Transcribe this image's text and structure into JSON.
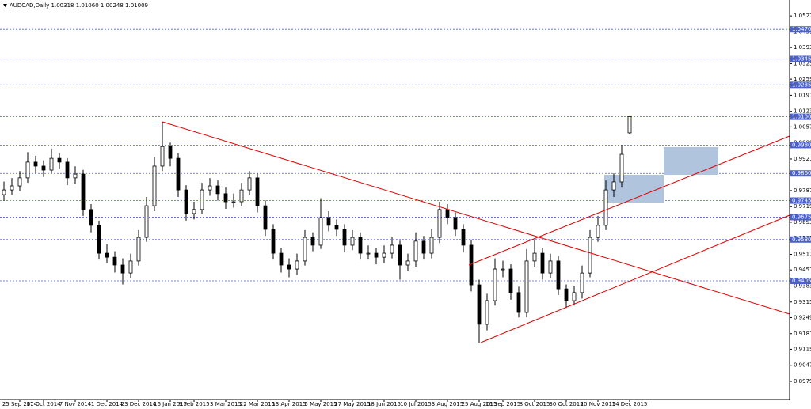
{
  "chart_data": {
    "type": "candlestick",
    "title": "AUDCAD,Daily  1.00318 1.01060 1.00248 1.01009",
    "categories": [
      null,
      null,
      "25 Sep 2014",
      null,
      null,
      "17 Oct 2014",
      null,
      null,
      null,
      "7 Nov 2014",
      null,
      null,
      null,
      "1 Dec 2014",
      null,
      null,
      null,
      "23 Dec 2014",
      null,
      null,
      null,
      "16 Jan 2015",
      null,
      null,
      "9 Feb 2015",
      null,
      null,
      null,
      "3 Mar 2015",
      null,
      null,
      null,
      "22 Mar 2015",
      null,
      null,
      null,
      "13 Apr 2015",
      null,
      null,
      null,
      "5 May 2015",
      null,
      null,
      null,
      "27 May 2015",
      null,
      null,
      null,
      "18 Jun 2015",
      null,
      null,
      null,
      "10 Jul 2015",
      null,
      null,
      null,
      "3 Aug 2015",
      null,
      null,
      null,
      "25 Aug 2015",
      null,
      null,
      "16 Sep 2015",
      null,
      null,
      null,
      "8 Oct 2015",
      null,
      null,
      null,
      "30 Oct 2015",
      null,
      null,
      null,
      "20 Nov 2015",
      null,
      null,
      null,
      "14 Dec 2015"
    ],
    "open": [
      0.977,
      0.979,
      0.9807,
      0.9841,
      0.9908,
      0.9891,
      0.9874,
      0.9924,
      0.9908,
      0.9841,
      0.9857,
      0.9707,
      0.964,
      0.9522,
      0.9505,
      0.9472,
      0.9438,
      0.9489,
      0.9589,
      0.9723,
      0.9891,
      0.9974,
      0.9924,
      0.979,
      0.969,
      0.9707,
      0.979,
      0.9807,
      0.9774,
      0.974,
      0.974,
      0.979,
      0.9841,
      0.9723,
      0.9623,
      0.9522,
      0.9472,
      0.9455,
      0.9489,
      0.9589,
      0.9556,
      0.9673,
      0.964,
      0.9623,
      0.9556,
      0.9589,
      0.9522,
      0.9522,
      0.9505,
      0.9522,
      0.9556,
      0.9472,
      0.9489,
      0.9573,
      0.9522,
      0.9589,
      0.9707,
      0.9673,
      0.9623,
      0.9556,
      0.9388,
      0.9221,
      0.9321,
      0.9455,
      0.9455,
      0.9355,
      0.9271,
      0.9489,
      0.9522,
      0.9438,
      0.9489,
      0.9371,
      0.9321,
      0.9355,
      0.9438,
      0.9589,
      0.964,
      0.979,
      0.9824,
      1.00318
    ],
    "high": [
      0.9825,
      0.984,
      0.987,
      0.995,
      0.9935,
      0.9915,
      0.9965,
      0.9945,
      0.9925,
      0.989,
      0.9875,
      0.973,
      0.966,
      0.956,
      0.953,
      0.95,
      0.952,
      0.962,
      0.976,
      0.993,
      1.0078,
      0.999,
      0.9945,
      0.981,
      0.974,
      0.982,
      0.984,
      0.983,
      0.98,
      0.9775,
      0.982,
      0.987,
      0.986,
      0.9745,
      0.9645,
      0.9545,
      0.95,
      0.952,
      0.962,
      0.961,
      0.9755,
      0.97,
      0.9665,
      0.9645,
      0.962,
      0.961,
      0.9555,
      0.9545,
      0.9555,
      0.959,
      0.9575,
      0.952,
      0.961,
      0.9595,
      0.9625,
      0.974,
      0.973,
      0.9695,
      0.9645,
      0.958,
      0.941,
      0.935,
      0.95,
      0.949,
      0.9475,
      0.938,
      0.954,
      0.958,
      0.9545,
      0.952,
      0.951,
      0.939,
      0.9385,
      0.947,
      0.962,
      0.968,
      0.983,
      0.986,
      0.998,
      1.0106
    ],
    "low": [
      0.9745,
      0.977,
      0.9785,
      0.982,
      0.986,
      0.9845,
      0.986,
      0.988,
      0.981,
      0.9815,
      0.968,
      0.961,
      0.9495,
      0.948,
      0.944,
      0.939,
      0.9415,
      0.947,
      0.957,
      0.97,
      0.987,
      0.989,
      0.976,
      0.966,
      0.9665,
      0.969,
      0.9765,
      0.9745,
      0.971,
      0.9715,
      0.972,
      0.977,
      0.9695,
      0.9595,
      0.9495,
      0.944,
      0.942,
      0.943,
      0.947,
      0.953,
      0.954,
      0.9615,
      0.9595,
      0.9525,
      0.9535,
      0.9495,
      0.9495,
      0.9475,
      0.948,
      0.95,
      0.941,
      0.9445,
      0.9465,
      0.9495,
      0.95,
      0.9565,
      0.9645,
      0.9595,
      0.9525,
      0.936,
      0.9143,
      0.9195,
      0.93,
      0.942,
      0.9325,
      0.925,
      0.925,
      0.9465,
      0.941,
      0.9415,
      0.9345,
      0.929,
      0.93,
      0.933,
      0.942,
      0.957,
      0.962,
      0.976,
      0.98,
      1.00248
    ],
    "close": [
      0.979,
      0.9807,
      0.9841,
      0.9908,
      0.9891,
      0.9874,
      0.9924,
      0.9908,
      0.9841,
      0.9857,
      0.9707,
      0.964,
      0.9522,
      0.9505,
      0.9472,
      0.9438,
      0.9489,
      0.9589,
      0.9723,
      0.9891,
      0.9974,
      0.9924,
      0.979,
      0.969,
      0.9707,
      0.979,
      0.9807,
      0.9774,
      0.974,
      0.974,
      0.979,
      0.9841,
      0.9723,
      0.9623,
      0.9522,
      0.9472,
      0.9455,
      0.9489,
      0.9589,
      0.9556,
      0.9673,
      0.964,
      0.9623,
      0.9556,
      0.9589,
      0.9522,
      0.9522,
      0.9505,
      0.9522,
      0.9556,
      0.9472,
      0.9489,
      0.9573,
      0.9522,
      0.9589,
      0.9707,
      0.9673,
      0.9623,
      0.9556,
      0.9388,
      0.9221,
      0.9321,
      0.9455,
      0.9455,
      0.9355,
      0.9271,
      0.9489,
      0.9522,
      0.9438,
      0.9489,
      0.9371,
      0.9321,
      0.9355,
      0.9438,
      0.9589,
      0.964,
      0.979,
      0.9824,
      0.9941,
      1.01009
    ],
    "ylim": [
      0.89022,
      1.0588
    ],
    "yticks": [
      1.05272,
      1.04592,
      1.03932,
      1.03252,
      1.02592,
      1.01912,
      1.01232,
      1.00572,
      0.99892,
      0.99212,
      0.98532,
      0.97872,
      0.97192,
      0.96532,
      0.95852,
      0.95172,
      0.94512,
      0.93832,
      0.93152,
      0.92492,
      0.91812,
      0.91152,
      0.90472,
      0.89792
    ],
    "levels": [
      {
        "value": 1.047,
        "label": "1.04700"
      },
      {
        "value": 1.0345,
        "label": "1.03450"
      },
      {
        "value": 1.0235,
        "label": "1.02350"
      },
      {
        "value": 1.01,
        "label": "1.01000"
      },
      {
        "value": 0.998,
        "label": "0.99800"
      },
      {
        "value": 0.986,
        "label": "0.98600"
      },
      {
        "value": 0.9745,
        "label": "0.97450"
      },
      {
        "value": 0.9675,
        "label": "0.96750"
      },
      {
        "value": 0.958,
        "label": "0.95800"
      },
      {
        "value": 0.9405,
        "label": "0.94050"
      }
    ],
    "level_color": "#4a5fd0",
    "candle_color": "#000000"
  }
}
